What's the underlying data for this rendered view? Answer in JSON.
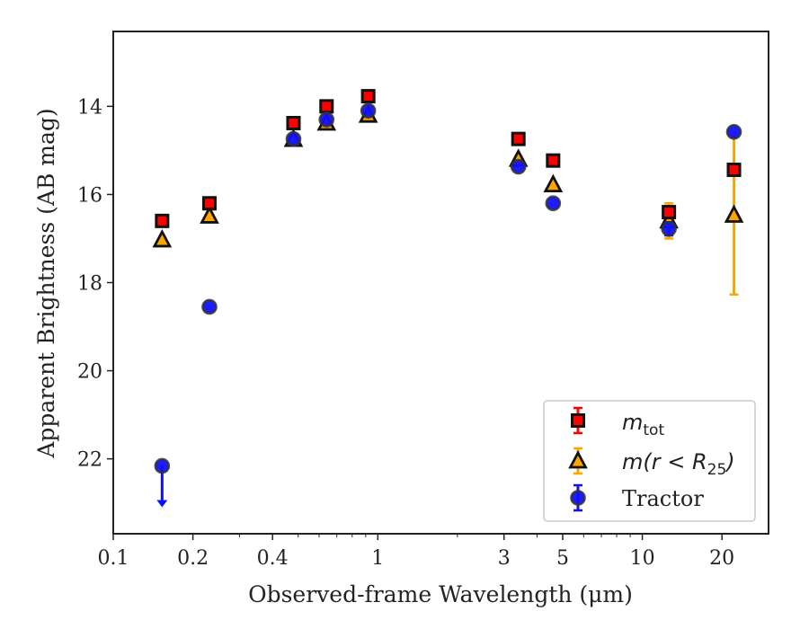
{
  "chart_data": {
    "type": "scatter",
    "title": "",
    "xlabel": "Observed-frame Wavelength (μm)",
    "ylabel": "Apparent Brightness (AB mag)",
    "xscale": "log",
    "xlim": [
      0.1,
      30
    ],
    "ylim": [
      23.7,
      12.3
    ],
    "y_inverted": true,
    "x_ticks": [
      {
        "value": 0.1,
        "label": "0.1"
      },
      {
        "value": 0.2,
        "label": "0.2"
      },
      {
        "value": 0.4,
        "label": "0.4"
      },
      {
        "value": 1,
        "label": "1"
      },
      {
        "value": 3,
        "label": "3"
      },
      {
        "value": 5,
        "label": "5"
      },
      {
        "value": 10,
        "label": "10"
      },
      {
        "value": 20,
        "label": "20"
      }
    ],
    "y_ticks": [
      {
        "value": 14,
        "label": "14"
      },
      {
        "value": 16,
        "label": "16"
      },
      {
        "value": 18,
        "label": "18"
      },
      {
        "value": 20,
        "label": "20"
      },
      {
        "value": 22,
        "label": "22"
      }
    ],
    "grid": false,
    "legend_position": "bottom-right",
    "series": [
      {
        "name": "m_tot",
        "marker": "square",
        "color": "#ff0000",
        "edge": "#111111",
        "errcolor": "#ff0000",
        "points": [
          {
            "x": 0.153,
            "y": 16.6,
            "err": 0
          },
          {
            "x": 0.231,
            "y": 16.2,
            "err": 0
          },
          {
            "x": 0.48,
            "y": 14.38,
            "err": 0
          },
          {
            "x": 0.64,
            "y": 14.0,
            "err": 0
          },
          {
            "x": 0.92,
            "y": 13.77,
            "err": 0
          },
          {
            "x": 3.4,
            "y": 14.74,
            "err": 0
          },
          {
            "x": 4.6,
            "y": 15.23,
            "err": 0
          },
          {
            "x": 12.6,
            "y": 16.4,
            "err": 0.12
          },
          {
            "x": 22.2,
            "y": 15.44,
            "err": 0
          }
        ]
      },
      {
        "name": "m(r < R25)",
        "marker": "triangle",
        "color": "#ffa500",
        "edge": "#111111",
        "errcolor": "#ffa500",
        "points": [
          {
            "x": 0.153,
            "y": 17.03,
            "err": 0
          },
          {
            "x": 0.231,
            "y": 16.49,
            "err": 0
          },
          {
            "x": 0.48,
            "y": 14.75,
            "err": 0
          },
          {
            "x": 0.64,
            "y": 14.38,
            "err": 0
          },
          {
            "x": 0.92,
            "y": 14.2,
            "err": 0
          },
          {
            "x": 3.4,
            "y": 15.2,
            "err": 0
          },
          {
            "x": 4.6,
            "y": 15.78,
            "err": 0
          },
          {
            "x": 12.6,
            "y": 16.6,
            "err": 0.4
          },
          {
            "x": 22.2,
            "y": 16.47,
            "err": 1.8
          }
        ]
      },
      {
        "name": "Tractor",
        "marker": "circle",
        "color": "#1010ff",
        "edge": "#333333",
        "errcolor": "#1010ff",
        "points": [
          {
            "x": 0.153,
            "y": 22.16,
            "err": 0,
            "upper_limit": true
          },
          {
            "x": 0.231,
            "y": 18.55,
            "err": 0
          },
          {
            "x": 0.48,
            "y": 14.74,
            "err": 0
          },
          {
            "x": 0.64,
            "y": 14.3,
            "err": 0
          },
          {
            "x": 0.92,
            "y": 14.1,
            "err": 0
          },
          {
            "x": 3.4,
            "y": 15.37,
            "err": 0
          },
          {
            "x": 4.6,
            "y": 16.2,
            "err": 0
          },
          {
            "x": 12.6,
            "y": 16.78,
            "err": 0.15
          },
          {
            "x": 22.2,
            "y": 14.58,
            "err": 0
          }
        ]
      }
    ]
  },
  "legend": {
    "items": [
      {
        "key": "m_tot",
        "main": "m",
        "sub": "tot"
      },
      {
        "key": "m_r25",
        "text": "m(r < R",
        "sub": "25",
        "close": ")"
      },
      {
        "key": "tractor",
        "text": "Tractor"
      }
    ]
  }
}
